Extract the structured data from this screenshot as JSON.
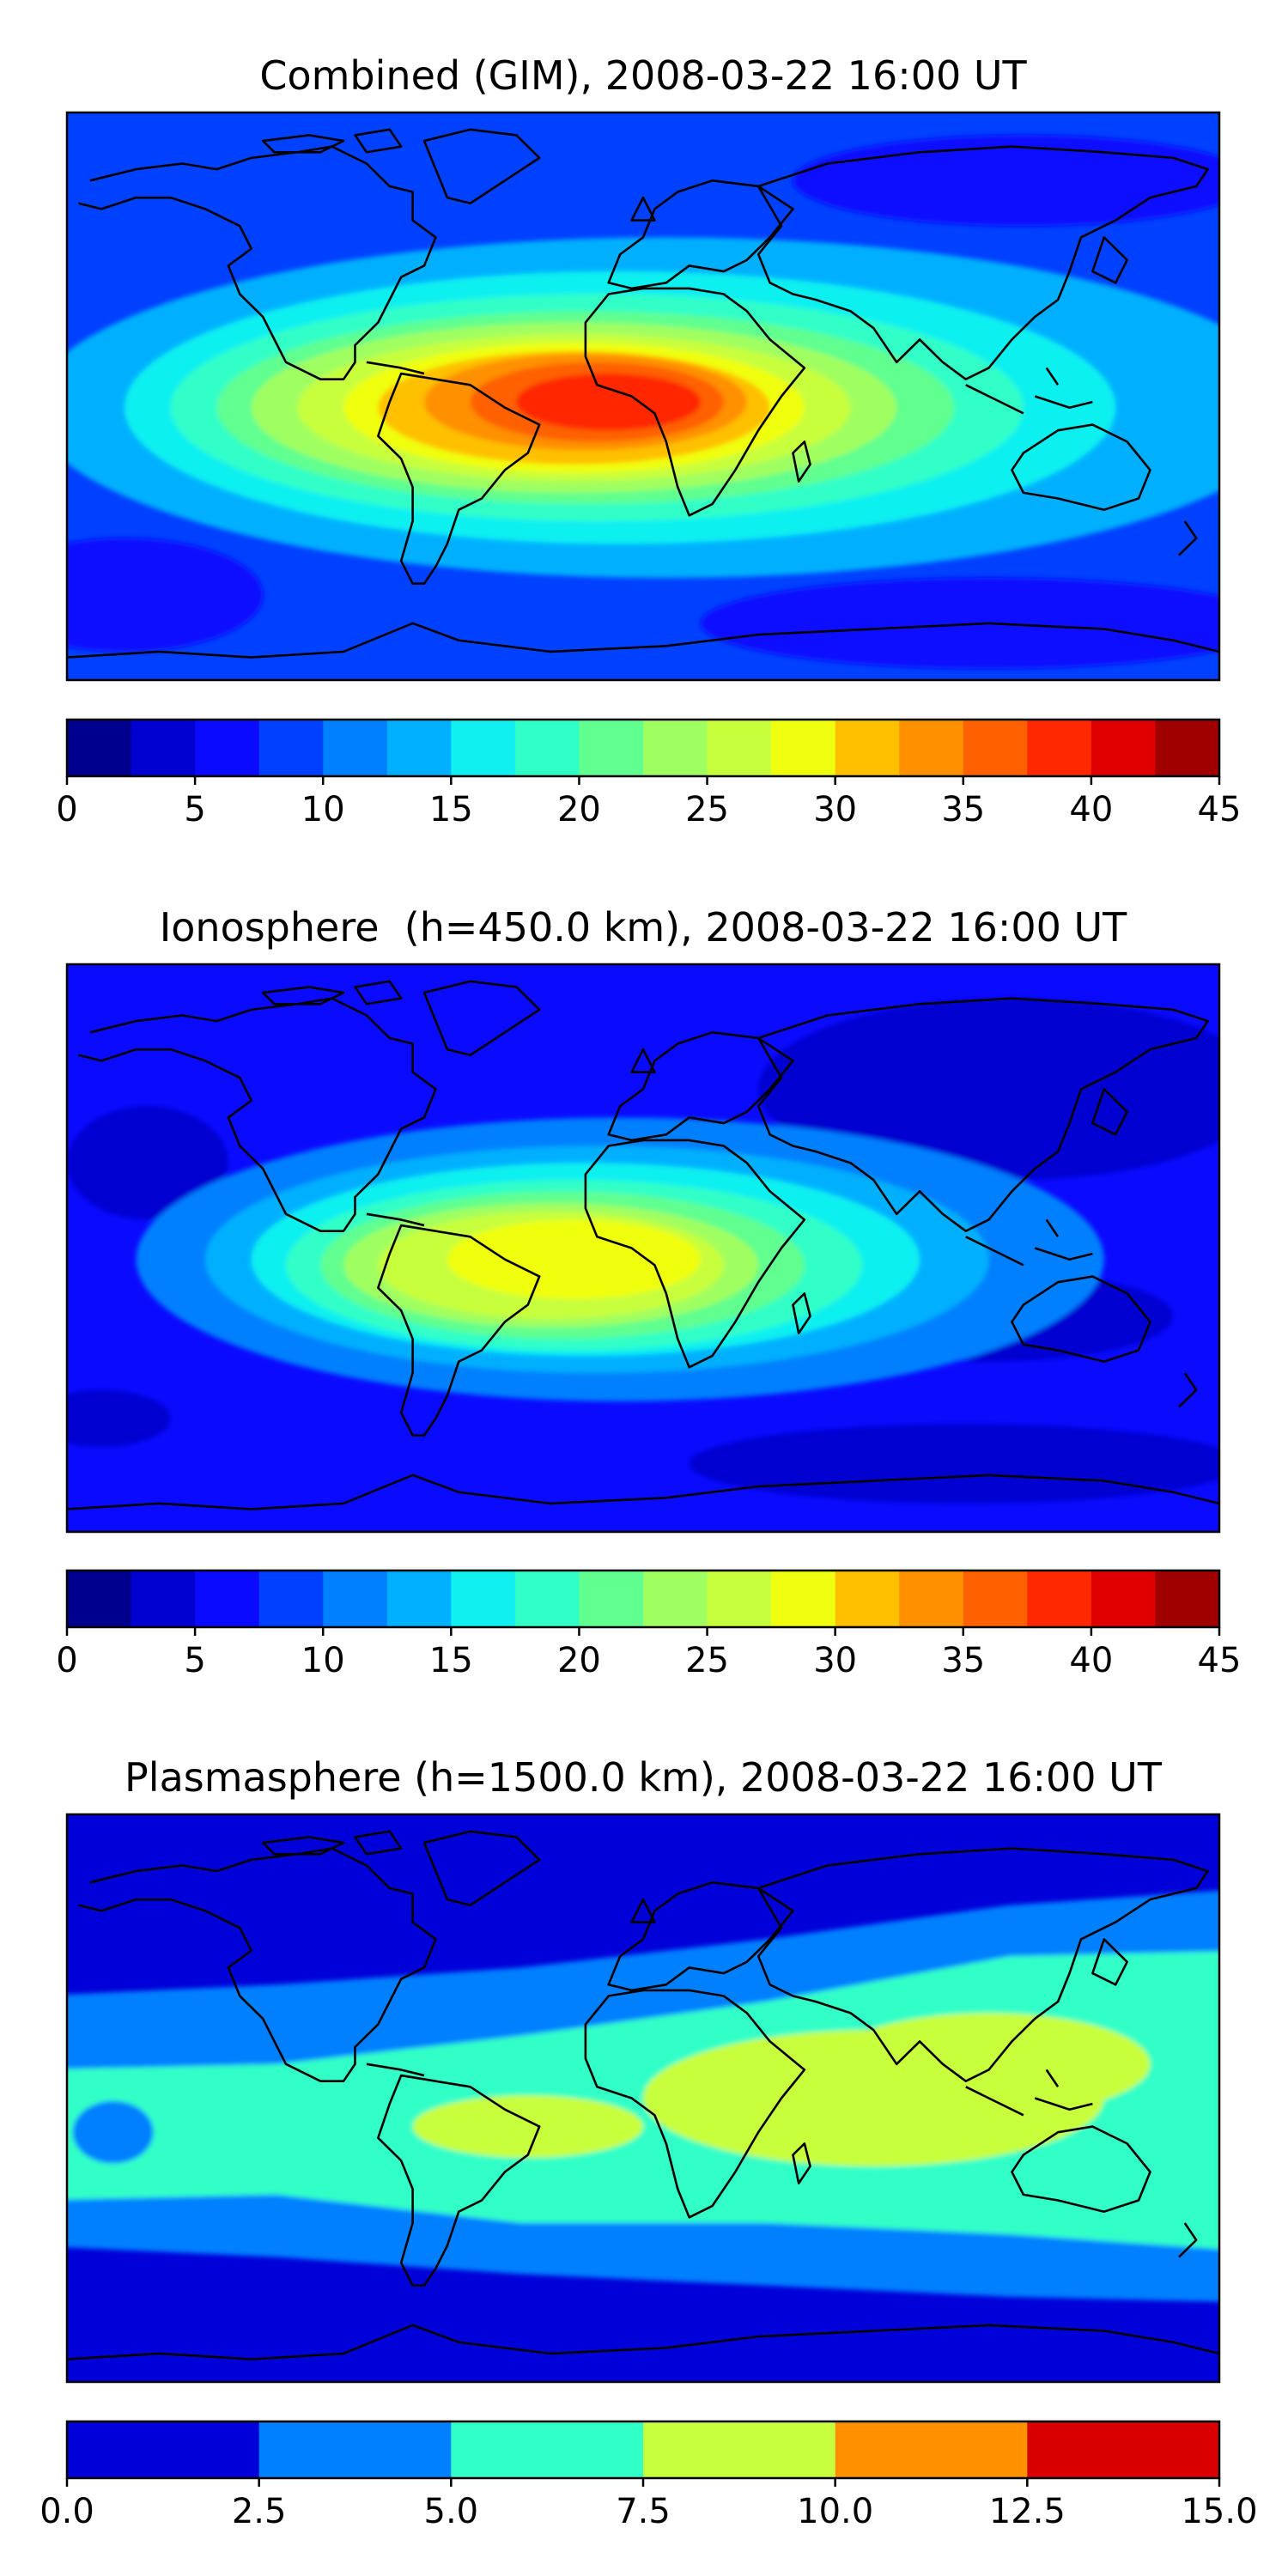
{
  "chart_data": [
    {
      "type": "heatmap",
      "title": "Combined (GIM), 2008-03-22 16:00 UT",
      "xlabel": "",
      "ylabel": "",
      "map": "world map (equirectangular) with coastlines",
      "colorbar": {
        "ticks": [
          0,
          5,
          10,
          15,
          20,
          25,
          30,
          35,
          40,
          45
        ],
        "tick_labels": [
          "0",
          "5",
          "10",
          "15",
          "20",
          "25",
          "30",
          "35",
          "40",
          "45"
        ],
        "levels": [
          0,
          2.5,
          5,
          7.5,
          10,
          12.5,
          15,
          17.5,
          20,
          22.5,
          25,
          27.5,
          30,
          32.5,
          35,
          37.5,
          40,
          42.5,
          45
        ],
        "colors": [
          "#00008f",
          "#0000d0",
          "#0a0aff",
          "#0040ff",
          "#0080ff",
          "#00b0ff",
          "#10f0f0",
          "#30ffc8",
          "#60ff90",
          "#a0ff60",
          "#c8ff3c",
          "#f0ff10",
          "#ffc000",
          "#ff9000",
          "#ff6000",
          "#ff2800",
          "#e00000",
          "#a00000"
        ]
      },
      "background": "#0040ff",
      "blobs": [
        {
          "cx": 0.52,
          "cy": 0.52,
          "rx": 0.55,
          "ry": 0.3,
          "level": 5
        },
        {
          "cx": 0.48,
          "cy": 0.52,
          "rx": 0.43,
          "ry": 0.24,
          "level": 6
        },
        {
          "cx": 0.46,
          "cy": 0.52,
          "rx": 0.37,
          "ry": 0.2,
          "level": 7
        },
        {
          "cx": 0.45,
          "cy": 0.52,
          "rx": 0.32,
          "ry": 0.17,
          "level": 8
        },
        {
          "cx": 0.44,
          "cy": 0.52,
          "rx": 0.28,
          "ry": 0.15,
          "level": 9
        },
        {
          "cx": 0.44,
          "cy": 0.52,
          "rx": 0.24,
          "ry": 0.13,
          "level": 10
        },
        {
          "cx": 0.44,
          "cy": 0.52,
          "rx": 0.2,
          "ry": 0.115,
          "level": 11
        },
        {
          "cx": 0.44,
          "cy": 0.52,
          "rx": 0.17,
          "ry": 0.1,
          "level": 12
        },
        {
          "cx": 0.45,
          "cy": 0.51,
          "rx": 0.14,
          "ry": 0.085,
          "level": 13
        },
        {
          "cx": 0.46,
          "cy": 0.51,
          "rx": 0.11,
          "ry": 0.07,
          "level": 14
        },
        {
          "cx": 0.47,
          "cy": 0.51,
          "rx": 0.08,
          "ry": 0.05,
          "level": 15
        }
      ],
      "extra_dark": [
        {
          "cx": 0.83,
          "cy": 0.12,
          "rx": 0.2,
          "ry": 0.08,
          "level": 2
        },
        {
          "cx": 0.8,
          "cy": 0.9,
          "rx": 0.25,
          "ry": 0.08,
          "level": 2
        },
        {
          "cx": 0.05,
          "cy": 0.85,
          "rx": 0.12,
          "ry": 0.1,
          "level": 2
        }
      ]
    },
    {
      "type": "heatmap",
      "title": "Ionosphere  (h=450.0 km), 2008-03-22 16:00 UT",
      "xlabel": "",
      "ylabel": "",
      "map": "world map (equirectangular) with coastlines",
      "colorbar": {
        "ticks": [
          0,
          5,
          10,
          15,
          20,
          25,
          30,
          35,
          40,
          45
        ],
        "tick_labels": [
          "0",
          "5",
          "10",
          "15",
          "20",
          "25",
          "30",
          "35",
          "40",
          "45"
        ],
        "levels": [
          0,
          2.5,
          5,
          7.5,
          10,
          12.5,
          15,
          17.5,
          20,
          22.5,
          25,
          27.5,
          30,
          32.5,
          35,
          37.5,
          40,
          42.5,
          45
        ],
        "colors": [
          "#00008f",
          "#0000d0",
          "#0a0aff",
          "#0040ff",
          "#0080ff",
          "#00b0ff",
          "#10f0f0",
          "#30ffc8",
          "#60ff90",
          "#a0ff60",
          "#c8ff3c",
          "#f0ff10",
          "#ffc000",
          "#ff9000",
          "#ff6000",
          "#ff2800",
          "#e00000",
          "#a00000"
        ]
      },
      "background": "#0a0aff",
      "blobs": [
        {
          "cx": 0.48,
          "cy": 0.52,
          "rx": 0.42,
          "ry": 0.25,
          "level": 4
        },
        {
          "cx": 0.46,
          "cy": 0.52,
          "rx": 0.34,
          "ry": 0.2,
          "level": 5
        },
        {
          "cx": 0.45,
          "cy": 0.52,
          "rx": 0.29,
          "ry": 0.17,
          "level": 6
        },
        {
          "cx": 0.44,
          "cy": 0.53,
          "rx": 0.25,
          "ry": 0.15,
          "level": 7
        },
        {
          "cx": 0.43,
          "cy": 0.53,
          "rx": 0.21,
          "ry": 0.13,
          "level": 8
        },
        {
          "cx": 0.42,
          "cy": 0.53,
          "rx": 0.18,
          "ry": 0.11,
          "level": 9
        },
        {
          "cx": 0.42,
          "cy": 0.53,
          "rx": 0.15,
          "ry": 0.095,
          "level": 10
        },
        {
          "cx": 0.44,
          "cy": 0.52,
          "rx": 0.11,
          "ry": 0.07,
          "level": 11
        }
      ],
      "extra_dark": [
        {
          "cx": 0.82,
          "cy": 0.22,
          "rx": 0.22,
          "ry": 0.16,
          "level": 1
        },
        {
          "cx": 0.8,
          "cy": 0.62,
          "rx": 0.16,
          "ry": 0.08,
          "level": 1
        },
        {
          "cx": 0.78,
          "cy": 0.88,
          "rx": 0.24,
          "ry": 0.07,
          "level": 1
        },
        {
          "cx": 0.07,
          "cy": 0.35,
          "rx": 0.07,
          "ry": 0.1,
          "level": 1
        },
        {
          "cx": 0.03,
          "cy": 0.8,
          "rx": 0.06,
          "ry": 0.05,
          "level": 1
        }
      ]
    },
    {
      "type": "heatmap",
      "title": "Plasmasphere (h=1500.0 km), 2008-03-22 16:00 UT",
      "xlabel": "",
      "ylabel": "",
      "map": "world map (equirectangular) with coastlines",
      "colorbar": {
        "ticks": [
          0,
          2.5,
          5,
          7.5,
          10,
          12.5,
          15
        ],
        "tick_labels": [
          "0.0",
          "2.5",
          "5.0",
          "7.5",
          "10.0",
          "12.5",
          "15.0"
        ],
        "levels": [
          0,
          2.5,
          5,
          7.5,
          10,
          12.5,
          15
        ],
        "colors": [
          "#0000d8",
          "#0080ff",
          "#30ffc8",
          "#c8ff3c",
          "#ff9000",
          "#d80000"
        ]
      },
      "background": "#0000d8",
      "blobs": [],
      "bands": [
        {
          "level": 1,
          "top": [
            0.32,
            0.3,
            0.27,
            0.22,
            0.16,
            0.13
          ],
          "bottom": [
            0.76,
            0.78,
            0.81,
            0.83,
            0.85,
            0.86
          ]
        },
        {
          "level": 2,
          "top": [
            0.45,
            0.44,
            0.39,
            0.33,
            0.25,
            0.24
          ],
          "bottom": [
            0.68,
            0.67,
            0.72,
            0.72,
            0.74,
            0.77
          ]
        }
      ],
      "yellow": [
        {
          "cx": 0.7,
          "cy": 0.5,
          "rx": 0.2,
          "ry": 0.12,
          "level": 3
        },
        {
          "cx": 0.8,
          "cy": 0.44,
          "rx": 0.14,
          "ry": 0.09,
          "level": 3
        },
        {
          "cx": 0.4,
          "cy": 0.55,
          "rx": 0.1,
          "ry": 0.055,
          "level": 3
        }
      ],
      "holes": [
        {
          "cx": 0.04,
          "cy": 0.56,
          "rx": 0.035,
          "ry": 0.055,
          "level": 1
        }
      ]
    }
  ]
}
